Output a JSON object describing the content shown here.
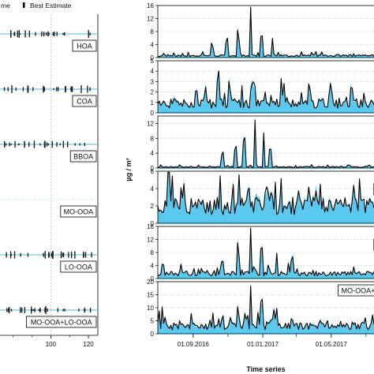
{
  "legend": {
    "range_label_fragment": "me",
    "best_label": "Best Estimate"
  },
  "chart_data": [
    {
      "type": "scatter",
      "panel": "left",
      "x_ticks": [
        "100",
        "120"
      ],
      "factors": [
        {
          "label": "HOA"
        },
        {
          "label": "COA"
        },
        {
          "label": "BBOA"
        },
        {
          "label": "MO-OOA"
        },
        {
          "label": "LO-OOA"
        },
        {
          "label": "MO-OOA+LO-OOA"
        }
      ]
    },
    {
      "type": "area",
      "panel": "right",
      "xlabel": "Time series",
      "ylabel": "µg / m³",
      "x_ticks": [
        "01.09.2016",
        "01.01.2017",
        "01.05.2017"
      ],
      "x_range": [
        "2016-07-01",
        "2017-07-15"
      ],
      "grid": true,
      "series_style": {
        "line_color": "#000000",
        "fill_color": "#5bc8f0"
      },
      "factors": [
        {
          "label": "",
          "ylim": [
            0,
            16
          ],
          "yticks": [
            0,
            4,
            8,
            12,
            16
          ],
          "base": 0.6,
          "peaks": [
            [
              0.43,
              16
            ],
            [
              0.37,
              9
            ],
            [
              0.48,
              8.5
            ],
            [
              0.32,
              7
            ],
            [
              0.53,
              6
            ],
            [
              0.25,
              5
            ]
          ]
        },
        {
          "label": "",
          "ylim": [
            0,
            5
          ],
          "yticks": [
            0,
            1,
            2,
            3,
            4,
            5
          ],
          "base": 0.9,
          "peaks": [
            [
              0.28,
              4.6
            ],
            [
              0.33,
              3.3
            ],
            [
              0.44,
              3.7
            ],
            [
              0.57,
              3.4
            ],
            [
              0.7,
              3.2
            ],
            [
              0.8,
              3.1
            ]
          ]
        },
        {
          "label": "",
          "ylim": [
            0,
            14
          ],
          "yticks": [
            0,
            4,
            8,
            12
          ],
          "base": 0.3,
          "peaks": [
            [
              0.45,
              13
            ],
            [
              0.4,
              10
            ],
            [
              0.49,
              9.5
            ],
            [
              0.36,
              7
            ],
            [
              0.52,
              6.5
            ],
            [
              0.3,
              5
            ]
          ]
        },
        {
          "label": "M",
          "ylim": [
            0,
            6
          ],
          "yticks": [
            0,
            2,
            4,
            6
          ],
          "base": 2.0,
          "peaks": [
            [
              0.05,
              5.5
            ],
            [
              0.12,
              4.8
            ],
            [
              0.42,
              5.0
            ],
            [
              0.5,
              4.6
            ],
            [
              0.65,
              4.0
            ],
            [
              0.95,
              3.5
            ]
          ]
        },
        {
          "label": "L",
          "ylim": [
            0,
            16
          ],
          "yticks": [
            0,
            4,
            8,
            12,
            16
          ],
          "base": 1.5,
          "peaks": [
            [
              0.43,
              16
            ],
            [
              0.48,
              12
            ],
            [
              0.37,
              9
            ],
            [
              0.55,
              8
            ],
            [
              0.62,
              7
            ],
            [
              0.3,
              6
            ]
          ]
        },
        {
          "label": "MO-OOA+",
          "ylim": [
            0,
            20
          ],
          "yticks": [
            0,
            5,
            10,
            15,
            20
          ],
          "base": 3.0,
          "peaks": [
            [
              0.43,
              19
            ],
            [
              0.48,
              16
            ],
            [
              0.37,
              11
            ],
            [
              0.55,
              10
            ],
            [
              0.3,
              8
            ],
            [
              0.62,
              7
            ]
          ]
        }
      ]
    }
  ]
}
